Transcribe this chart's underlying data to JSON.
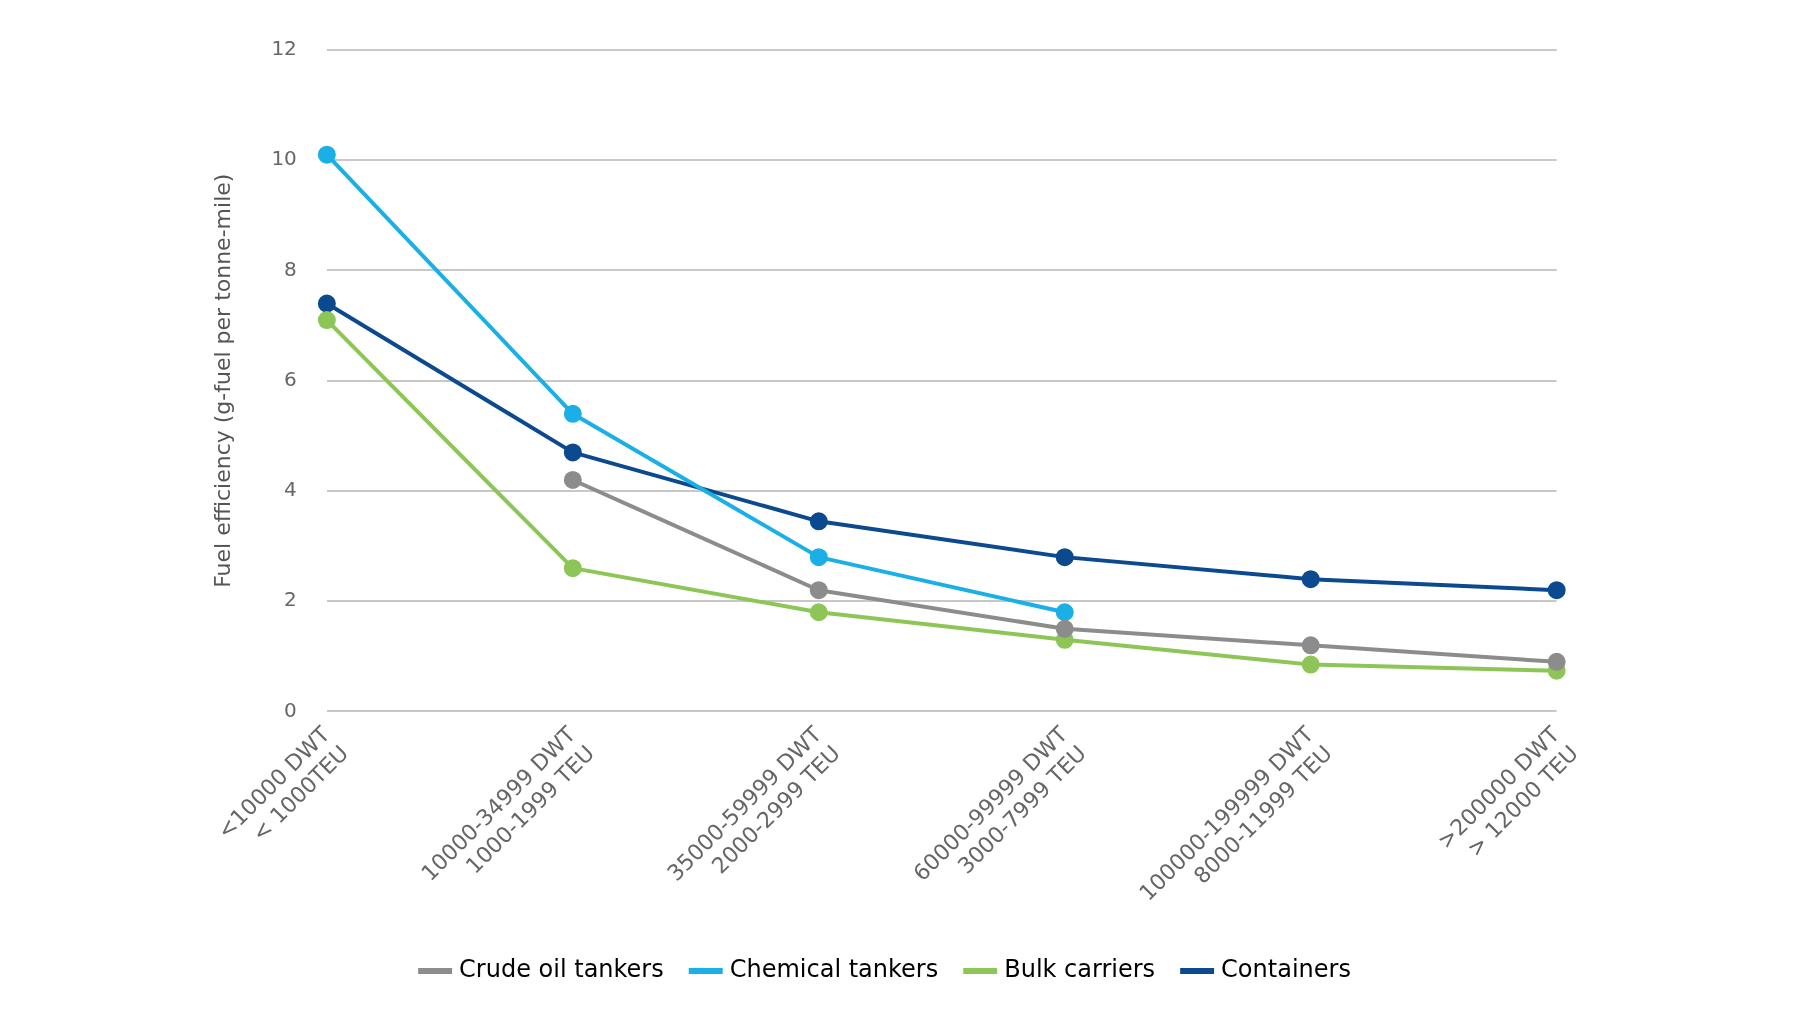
{
  "chart_data": {
    "type": "line",
    "ylabel": "Fuel efficiency (g-fuel per tonne-mile)",
    "categories": [
      "<10000 DWT\n< 1000TEU",
      "10000-34999 DWT\n1000-1999 TEU",
      "35000-59999 DWT\n2000-2999 TEU",
      "60000-99999 DWT\n3000-7999 TEU",
      "100000-199999 DWT\n8000-11999 TEU",
      ">200000 DWT\n> 12000 TEU"
    ],
    "series": [
      {
        "name": "Crude oil tankers",
        "color": "#8c8c8c",
        "values": [
          null,
          4.2,
          2.2,
          1.5,
          1.2,
          0.9
        ]
      },
      {
        "name": "Chemical tankers",
        "color": "#1ab0e6",
        "values": [
          10.1,
          5.4,
          2.8,
          1.8,
          null,
          null
        ]
      },
      {
        "name": "Bulk carriers",
        "color": "#8dc556",
        "values": [
          7.1,
          2.6,
          1.8,
          1.3,
          0.85,
          0.74
        ]
      },
      {
        "name": "Containers",
        "color": "#0b4a8f",
        "values": [
          7.4,
          4.7,
          3.45,
          2.8,
          2.4,
          2.2
        ]
      }
    ],
    "ylim": [
      0,
      12
    ],
    "yticks": [
      0,
      2,
      4,
      6,
      8,
      10,
      12
    ],
    "grid": "y",
    "legend": "bottom",
    "marker": "circle",
    "line_style": "solid"
  }
}
